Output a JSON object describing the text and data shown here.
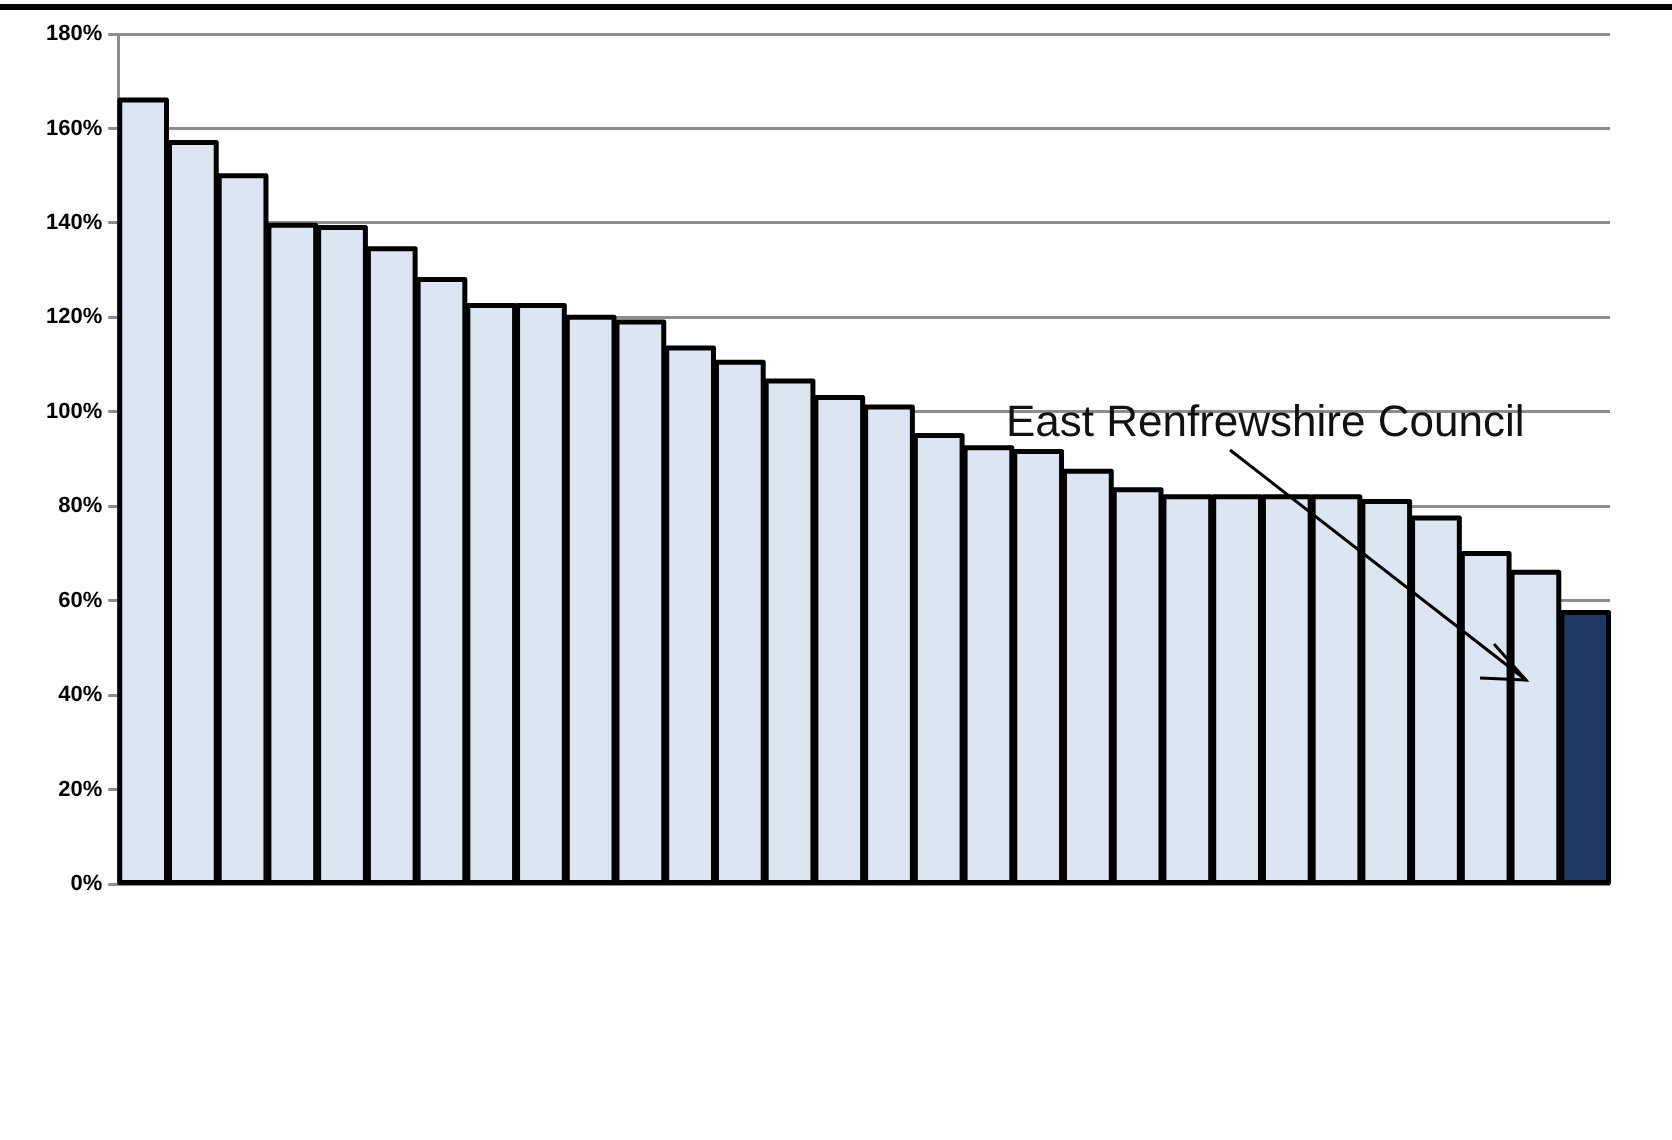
{
  "chart_data": {
    "type": "bar",
    "categories": [
      null,
      null,
      null,
      null,
      null,
      null,
      null,
      null,
      null,
      null,
      null,
      null,
      null,
      null,
      null,
      null,
      null,
      null,
      null,
      null,
      null,
      null,
      null,
      null,
      null,
      null,
      null,
      null,
      null,
      null
    ],
    "values": [
      166,
      157,
      150,
      139.5,
      139,
      134.5,
      128,
      122.5,
      122.5,
      120,
      119,
      113.5,
      110.5,
      106.5,
      103,
      101,
      95,
      92.4,
      91.6,
      87.4,
      83.5,
      82,
      82,
      82,
      82,
      81,
      77.5,
      70,
      66,
      57.5
    ],
    "colors": [
      "#dce6f2",
      "#dce6f2",
      "#dce6f2",
      "#dce6f2",
      "#dce6f2",
      "#dce6f2",
      "#dce6f2",
      "#dce6f2",
      "#dce6f2",
      "#dce6f2",
      "#dce6f2",
      "#dce6f2",
      "#dce6f2",
      "#dce6f2",
      "#dce6f2",
      "#dce6f2",
      "#dce6f2",
      "#dce6f2",
      "#dce6f2",
      "#dce6f2",
      "#dce6f2",
      "#dce6f2",
      "#dce6f2",
      "#dce6f2",
      "#dce6f2",
      "#dce6f2",
      "#dce6f2",
      "#dce6f2",
      "#dce6f2",
      "#1f3864"
    ],
    "ylim": [
      0,
      180
    ],
    "yticks": [
      {
        "value": 0,
        "label": "0%"
      },
      {
        "value": 20,
        "label": "20%"
      },
      {
        "value": 40,
        "label": "40%"
      },
      {
        "value": 60,
        "label": "60%"
      },
      {
        "value": 80,
        "label": "80%"
      },
      {
        "value": 100,
        "label": "100%"
      },
      {
        "value": 120,
        "label": "120%"
      },
      {
        "value": 140,
        "label": "140%"
      },
      {
        "value": 160,
        "label": "160%"
      },
      {
        "value": 180,
        "label": "180%"
      }
    ],
    "grid": "y",
    "annotations": [
      "East Renfrewshire Council"
    ]
  }
}
